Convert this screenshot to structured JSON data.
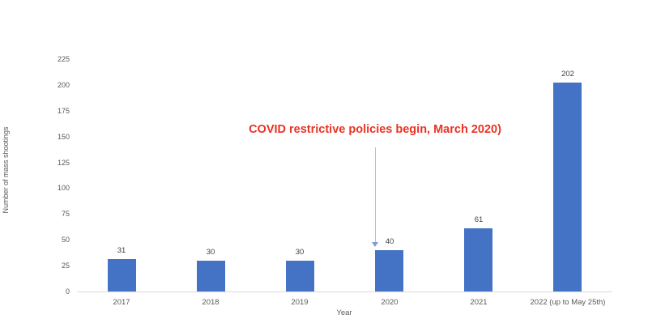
{
  "chart_data": {
    "type": "bar",
    "title": "",
    "xlabel": "Year",
    "ylabel": "Number of mass shootings",
    "categories": [
      "2017",
      "2018",
      "2019",
      "2020",
      "2021",
      "2022 (up to May 25th)"
    ],
    "values": [
      31,
      30,
      30,
      40,
      61,
      202
    ],
    "data_labels": [
      "31",
      "30",
      "30",
      "40",
      "61",
      "202"
    ],
    "ylim": [
      0,
      225
    ],
    "ytick_step": 25,
    "grid": false,
    "legend": "none",
    "bar_color": "#4472C4",
    "axis_text_color": "#595959",
    "data_label_color": "#404040",
    "baseline_color": "#D9D9D9"
  },
  "annotation": {
    "text": "COVID restrictive policies begin, March 2020)",
    "text_color": "#EA3223",
    "arrow_line_color": "#A8BEE8",
    "arrow_head_color": "#7E9CD8",
    "target_category": "2020"
  }
}
